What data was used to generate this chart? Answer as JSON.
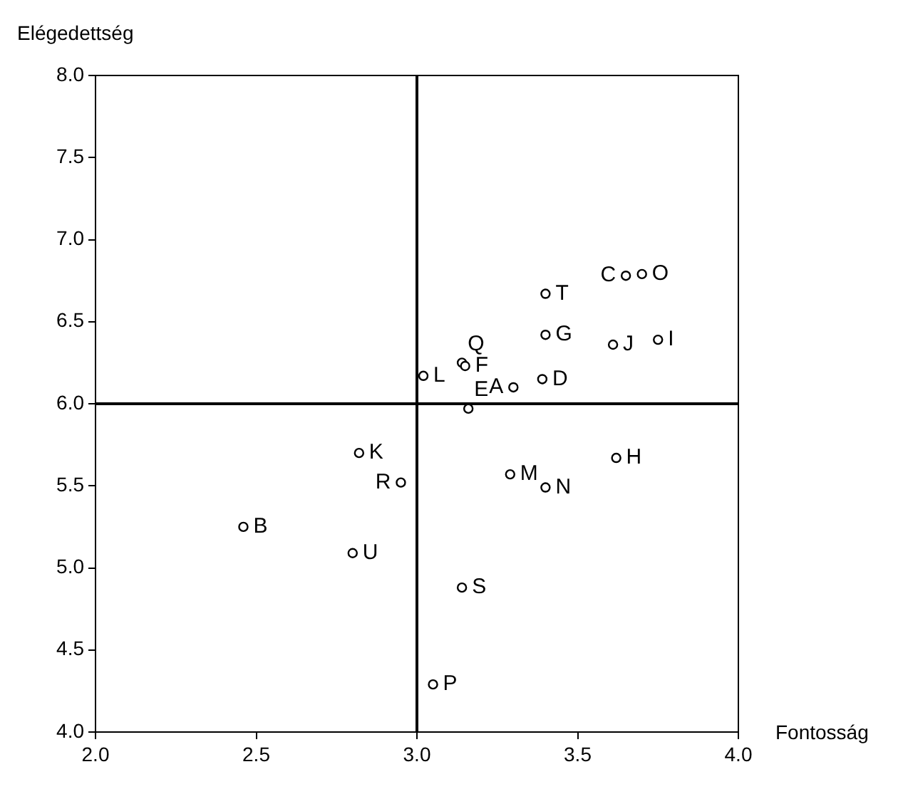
{
  "chart_data": {
    "type": "scatter",
    "xlabel": "Fontosság",
    "ylabel": "Elégedettség",
    "xlim": [
      2,
      4
    ],
    "ylim": [
      4,
      8
    ],
    "xticks": [
      {
        "value": 2,
        "label": "2.0"
      },
      {
        "value": 2.5,
        "label": "2.5"
      },
      {
        "value": 3,
        "label": "3.0"
      },
      {
        "value": 3.5,
        "label": "3.5"
      },
      {
        "value": 4,
        "label": "4.0"
      }
    ],
    "yticks": [
      {
        "value": 4,
        "label": "4.0"
      },
      {
        "value": 4.5,
        "label": "4.5"
      },
      {
        "value": 5,
        "label": "5.0"
      },
      {
        "value": 5.5,
        "label": "5.5"
      },
      {
        "value": 6,
        "label": "6.0"
      },
      {
        "value": 6.5,
        "label": "6.5"
      },
      {
        "value": 7,
        "label": "7.0"
      },
      {
        "value": 7.5,
        "label": "7.5"
      },
      {
        "value": 8,
        "label": "8.0"
      }
    ],
    "grid": false,
    "legend": false,
    "marker": "circle",
    "ref_lines": [
      {
        "axis": "x",
        "value": 3,
        "color": "#000000"
      },
      {
        "axis": "y",
        "value": 6,
        "color": "#000000"
      }
    ],
    "series": [
      {
        "name": "A",
        "color": "#000000",
        "x": [
          3.3
        ],
        "values": [
          6.1
        ]
      },
      {
        "name": "B",
        "color": "#000000",
        "x": [
          2.46
        ],
        "values": [
          5.25
        ]
      },
      {
        "name": "C",
        "color": "#000000",
        "x": [
          3.65
        ],
        "values": [
          6.78
        ]
      },
      {
        "name": "D",
        "color": "#000000",
        "x": [
          3.39
        ],
        "values": [
          6.15
        ]
      },
      {
        "name": "E",
        "color": "#000000",
        "x": [
          3.16
        ],
        "values": [
          5.97
        ]
      },
      {
        "name": "F",
        "color": "#000000",
        "x": [
          3.15
        ],
        "values": [
          6.23
        ]
      },
      {
        "name": "G",
        "color": "#000000",
        "x": [
          3.4
        ],
        "values": [
          6.42
        ]
      },
      {
        "name": "H",
        "color": "#000000",
        "x": [
          3.62
        ],
        "values": [
          5.67
        ]
      },
      {
        "name": "I",
        "color": "#000000",
        "x": [
          3.75
        ],
        "values": [
          6.39
        ]
      },
      {
        "name": "J",
        "color": "#000000",
        "x": [
          3.61
        ],
        "values": [
          6.36
        ]
      },
      {
        "name": "K",
        "color": "#000000",
        "x": [
          2.82
        ],
        "values": [
          5.7
        ]
      },
      {
        "name": "L",
        "color": "#000000",
        "x": [
          3.02
        ],
        "values": [
          6.17
        ]
      },
      {
        "name": "M",
        "color": "#000000",
        "x": [
          3.29
        ],
        "values": [
          5.57
        ]
      },
      {
        "name": "N",
        "color": "#000000",
        "x": [
          3.4
        ],
        "values": [
          5.49
        ]
      },
      {
        "name": "O",
        "color": "#000000",
        "x": [
          3.7
        ],
        "values": [
          6.79
        ]
      },
      {
        "name": "P",
        "color": "#000000",
        "x": [
          3.05
        ],
        "values": [
          4.29
        ]
      },
      {
        "name": "Q",
        "color": "#000000",
        "x": [
          3.14
        ],
        "values": [
          6.25
        ]
      },
      {
        "name": "R",
        "color": "#000000",
        "x": [
          2.95
        ],
        "values": [
          5.52
        ]
      },
      {
        "name": "S",
        "color": "#000000",
        "x": [
          3.14
        ],
        "values": [
          4.88
        ]
      },
      {
        "name": "T",
        "color": "#000000",
        "x": [
          3.4
        ],
        "values": [
          6.67
        ]
      },
      {
        "name": "U",
        "color": "#000000",
        "x": [
          2.8
        ],
        "values": [
          5.09
        ]
      }
    ]
  }
}
